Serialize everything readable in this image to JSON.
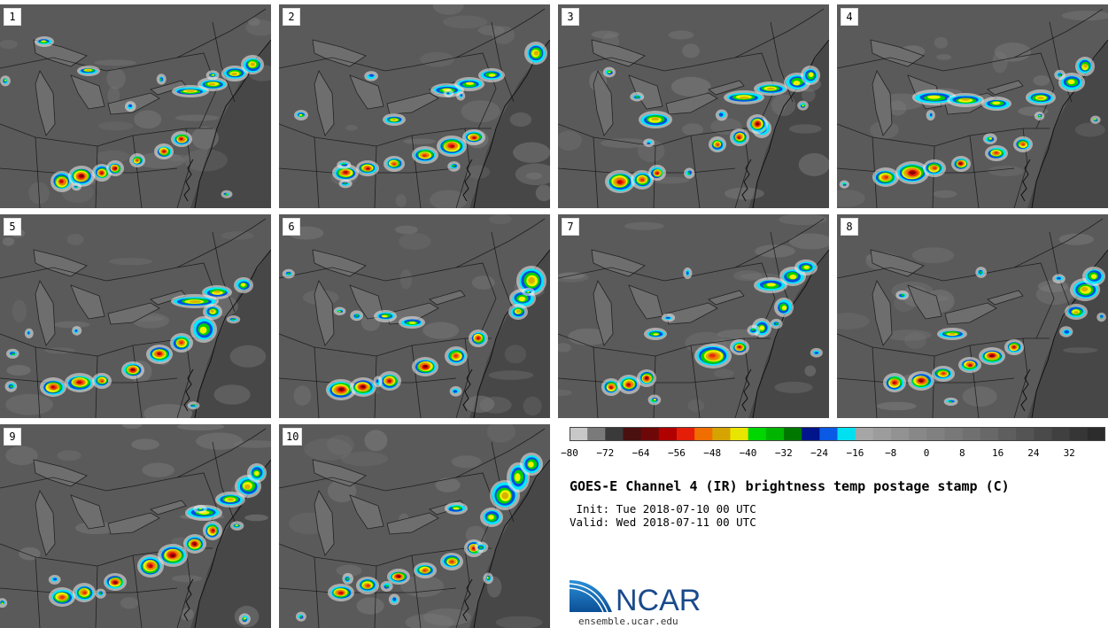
{
  "panels": [
    {
      "label": "1"
    },
    {
      "label": "2"
    },
    {
      "label": "3"
    },
    {
      "label": "4"
    },
    {
      "label": "5"
    },
    {
      "label": "6"
    },
    {
      "label": "7"
    },
    {
      "label": "8"
    },
    {
      "label": "9"
    },
    {
      "label": "10"
    }
  ],
  "colorbar": {
    "tick_labels": [
      "−80",
      "−72",
      "−64",
      "−56",
      "−48",
      "−40",
      "−32",
      "−24",
      "−16",
      "−8",
      "0",
      "8",
      "16",
      "24",
      "32"
    ],
    "colors": [
      "#c8c8c8",
      "#7a7a7a",
      "#3a3a3a",
      "#4a1010",
      "#6e0808",
      "#b00000",
      "#e51e0a",
      "#f06e00",
      "#d6a400",
      "#e8e600",
      "#00d600",
      "#00b400",
      "#007800",
      "#00148c",
      "#0a5ae6",
      "#00e0f0",
      "#a6a6a6",
      "#9c9c9c",
      "#929292",
      "#888888",
      "#808080",
      "#787878",
      "#707070",
      "#686868",
      "#5e5e5e",
      "#545454",
      "#4a4a4a",
      "#404040",
      "#363636",
      "#2c2c2c"
    ]
  },
  "title": "GOES-E Channel 4 (IR) brightness temp postage stamp (C)",
  "init_line": " Init: Tue 2018-07-10 00 UTC",
  "valid_line": "Valid: Wed 2018-07-11 00 UTC",
  "logo": {
    "text": "NCAR",
    "url": "ensemble.ucar.edu"
  }
}
